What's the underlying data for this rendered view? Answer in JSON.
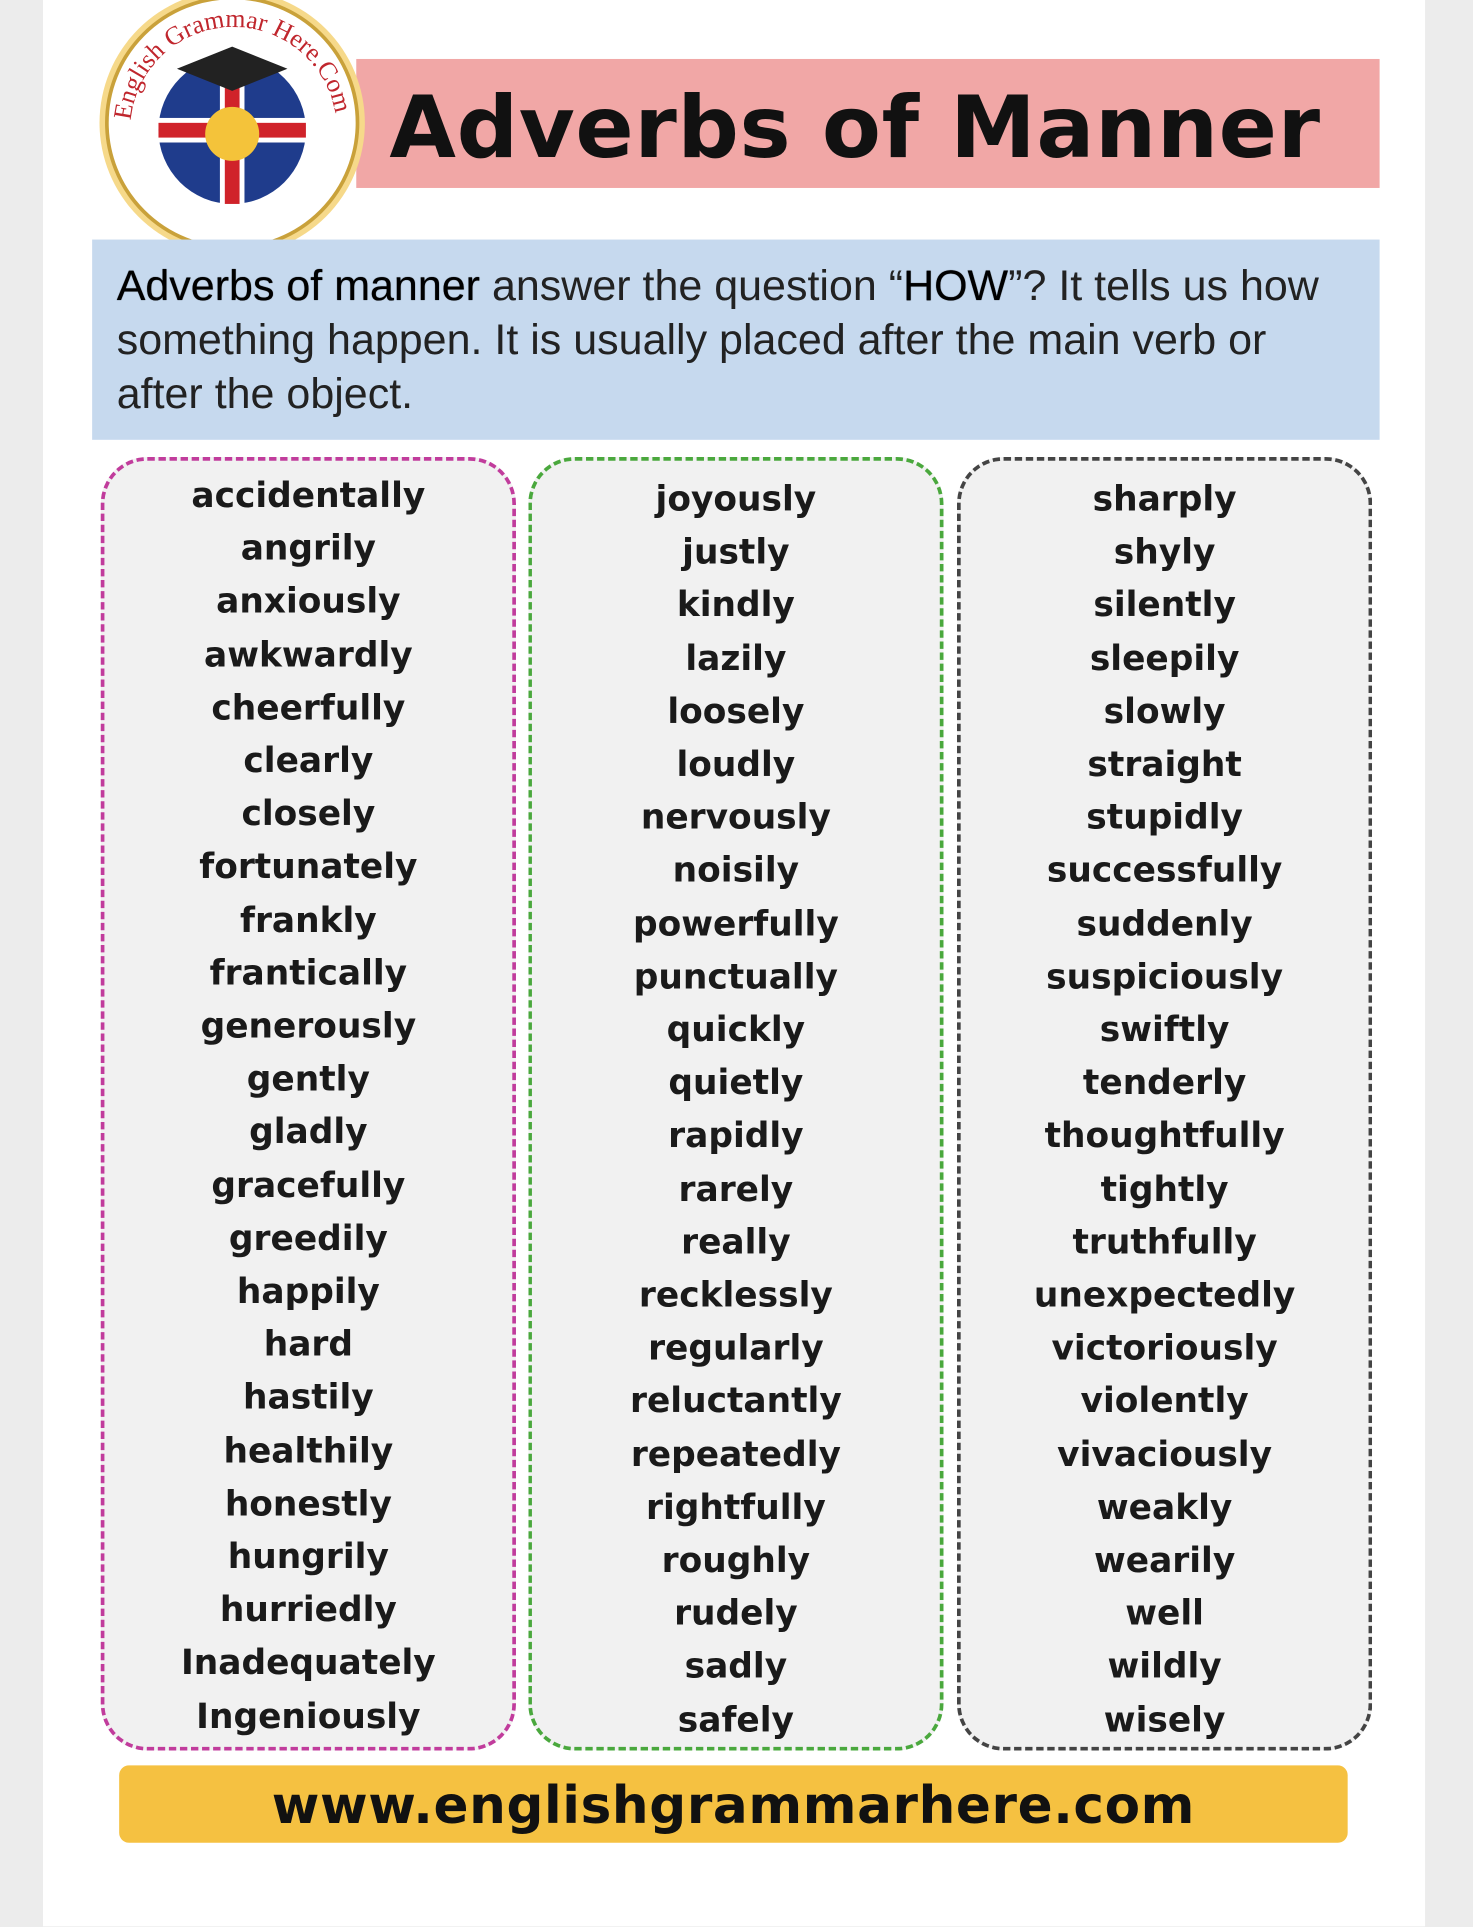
{
  "header": {
    "logo_text": "English Grammar Here.Com",
    "title": "Adverbs of Manner"
  },
  "description": {
    "parts": [
      "Adverbs of manner",
      " answer the question “",
      "HOW",
      "”? It tells us how something happen. It is usually placed after the main verb or after the object."
    ]
  },
  "columns": [
    [
      "accidentally",
      "angrily",
      "anxiously",
      "awkwardly",
      "cheerfully",
      "clearly",
      "closely",
      "fortunately",
      "frankly",
      "frantically",
      "generously",
      "gently",
      "gladly",
      "gracefully",
      "greedily",
      "happily",
      "hard",
      "hastily",
      "healthily",
      "honestly",
      "hungrily",
      "hurriedly",
      "Inadequately",
      "Ingeniously"
    ],
    [
      "joyously",
      "justly",
      "kindly",
      "lazily",
      "loosely",
      "loudly",
      "nervously",
      "noisily",
      "powerfully",
      "punctually",
      "quickly",
      "quietly",
      "rapidly",
      "rarely",
      "really",
      "recklessly",
      "regularly",
      "reluctantly",
      "repeatedly",
      "rightfully",
      "roughly",
      "rudely",
      "sadly",
      "safely"
    ],
    [
      "sharply",
      "shyly",
      "silently",
      "sleepily",
      "slowly",
      "straight",
      "stupidly",
      "successfully",
      "suddenly",
      "suspiciously",
      "swiftly",
      "tenderly",
      "thoughtfully",
      "tightly",
      "truthfully",
      "unexpectedly",
      "victoriously",
      "violently",
      "vivaciously",
      "weakly",
      "wearily",
      "well",
      "wildly",
      "wisely"
    ]
  ],
  "footer": {
    "url": "www.englishgrammarhere.com"
  }
}
